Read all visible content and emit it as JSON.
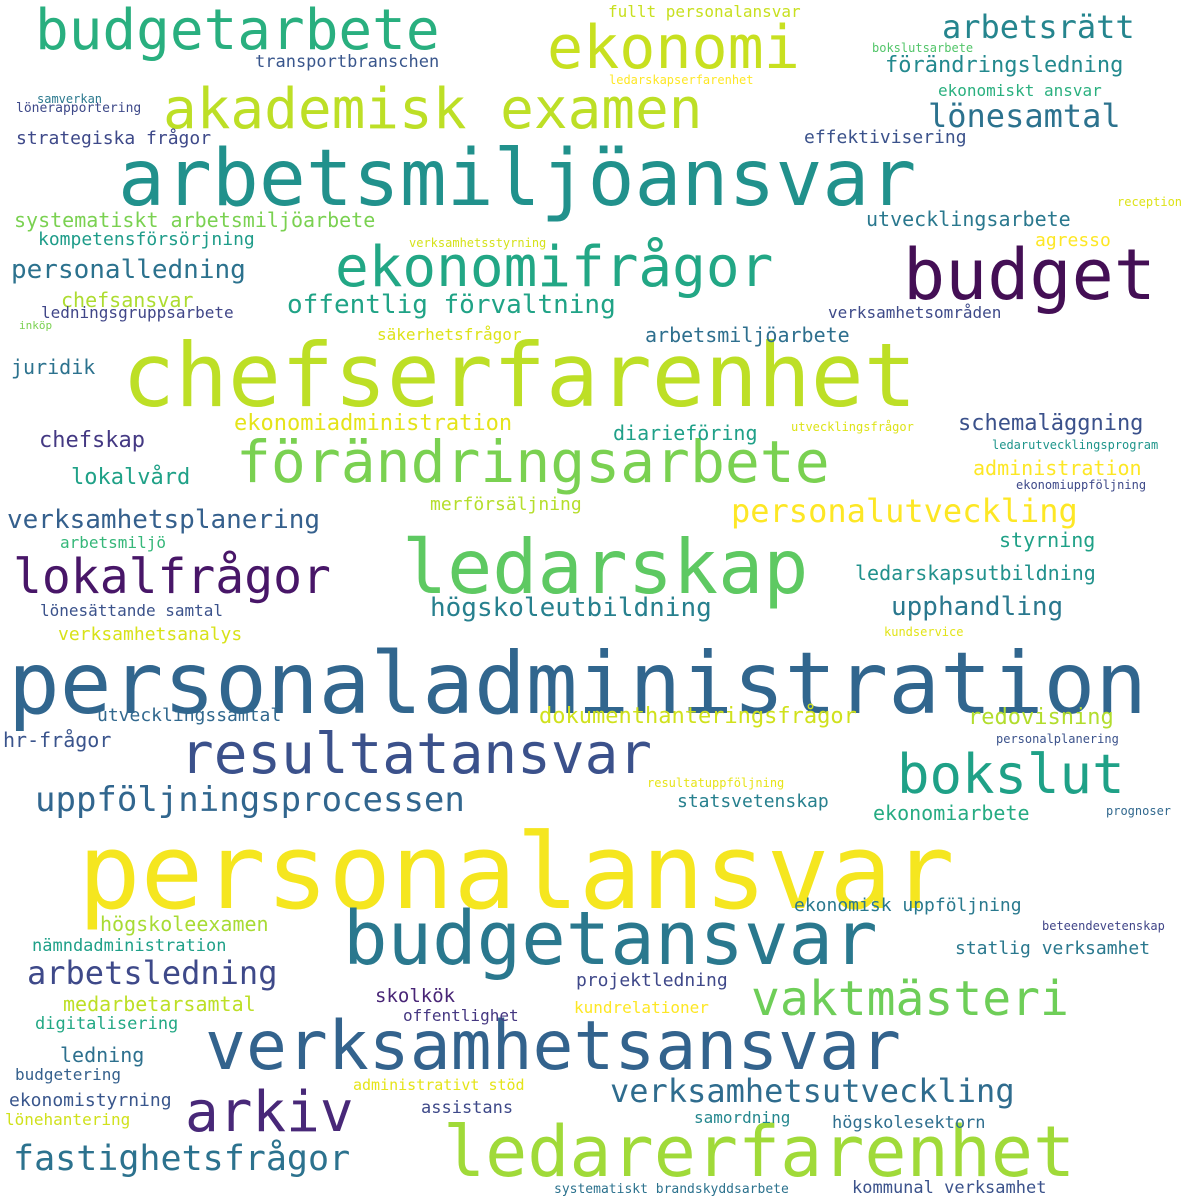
{
  "words": [
    {
      "text": "personalansvar",
      "color": "#f5e61f"
    },
    {
      "text": "personaladministration",
      "color": "#31668e"
    },
    {
      "text": "chefserfarenhet",
      "color": "#bddf26"
    },
    {
      "text": "arbetsmiljöansvar",
      "color": "#21918c"
    },
    {
      "text": "verksamhetsansvar",
      "color": "#33638d"
    },
    {
      "text": "ledarskap",
      "color": "#5ec962"
    },
    {
      "text": "budgetansvar",
      "color": "#2a788e"
    },
    {
      "text": "ledarerfarenhet",
      "color": "#a0da39"
    },
    {
      "text": "budget",
      "color": "#440f55"
    },
    {
      "text": "förändringsarbete",
      "color": "#7ad151"
    },
    {
      "text": "resultatansvar",
      "color": "#3b518b"
    },
    {
      "text": "ekonomi",
      "color": "#c8e020"
    },
    {
      "text": "akademisk examen",
      "color": "#bddf26"
    },
    {
      "text": "ekonomifrågor",
      "color": "#22a785"
    },
    {
      "text": "budgetarbete",
      "color": "#29af7f"
    },
    {
      "text": "lokalfrågor",
      "color": "#481668"
    },
    {
      "text": "bokslut",
      "color": "#1fa187"
    },
    {
      "text": "vaktmästeri",
      "color": "#6ece58"
    },
    {
      "text": "arkiv",
      "color": "#482878"
    },
    {
      "text": "uppföljningsprocessen",
      "color": "#31668e"
    },
    {
      "text": "fastighetsfrågor",
      "color": "#2c728e"
    },
    {
      "text": "verksamhetsutveckling",
      "color": "#2f6c8e"
    },
    {
      "text": "personalutveckling",
      "color": "#fde725"
    },
    {
      "text": "arbetsledning",
      "color": "#3e4989"
    },
    {
      "text": "verksamhetsplanering",
      "color": "#35608d"
    },
    {
      "text": "arbetsrätt",
      "color": "#25858e"
    },
    {
      "text": "lönesamtal",
      "color": "#2c728e"
    },
    {
      "text": "högskoleutbildning",
      "color": "#27808e"
    },
    {
      "text": "offentlig förvaltning",
      "color": "#20a386"
    },
    {
      "text": "personalledning",
      "color": "#2c728e"
    },
    {
      "text": "upphandling",
      "color": "#2a788e"
    },
    {
      "text": "förändringsledning",
      "color": "#23898e"
    },
    {
      "text": "transportbranschen",
      "color": "#39568c"
    },
    {
      "text": "fullt personalansvar",
      "color": "#c8e020"
    },
    {
      "text": "ekonomiskt ansvar",
      "color": "#2ab07f"
    },
    {
      "text": "strategiska frågor",
      "color": "#3e4989"
    },
    {
      "text": "effektivisering",
      "color": "#3b528b"
    },
    {
      "text": "systematiskt arbetsmiljöarbete",
      "color": "#7ad151"
    },
    {
      "text": "kompetensförsörjning",
      "color": "#1e9c89"
    },
    {
      "text": "utvecklingsarbete",
      "color": "#2a788e"
    },
    {
      "text": "chefsansvar",
      "color": "#addc30"
    },
    {
      "text": "agresso",
      "color": "#fde725"
    },
    {
      "text": "ledningsgruppsarbete",
      "color": "#404688"
    },
    {
      "text": "verksamhetsområden",
      "color": "#3e4a89"
    },
    {
      "text": "arbetsmiljöarbete",
      "color": "#2e6f8e"
    },
    {
      "text": "säkerhetsfrågor",
      "color": "#dde318"
    },
    {
      "text": "juridik",
      "color": "#2c728e"
    },
    {
      "text": "ekonomiadministration",
      "color": "#e5e419"
    },
    {
      "text": "schemaläggning",
      "color": "#3b518b"
    },
    {
      "text": "chefskap",
      "color": "#443983"
    },
    {
      "text": "diarieföring",
      "color": "#1fa088"
    },
    {
      "text": "lokalvård",
      "color": "#1fa187"
    },
    {
      "text": "administration",
      "color": "#fde725"
    },
    {
      "text": "merförsäljning",
      "color": "#b5de2b"
    },
    {
      "text": "styrning",
      "color": "#1fa187"
    },
    {
      "text": "arbetsmiljö",
      "color": "#35b779"
    },
    {
      "text": "ledarskapsutbildning",
      "color": "#21918c"
    },
    {
      "text": "lönesättande samtal",
      "color": "#3b528b"
    },
    {
      "text": "verksamhetsanalys",
      "color": "#d8e219"
    },
    {
      "text": "utvecklingssamtal",
      "color": "#31688e"
    },
    {
      "text": "dokumenthanteringsfrågor",
      "color": "#d0e11c"
    },
    {
      "text": "redovisning",
      "color": "#b2dd2d"
    },
    {
      "text": "hr-frågor",
      "color": "#3a548c"
    },
    {
      "text": "statsvetenskap",
      "color": "#27808e"
    },
    {
      "text": "ekonomiarbete",
      "color": "#25ab82"
    },
    {
      "text": "högskoleexamen",
      "color": "#a8db34"
    },
    {
      "text": "ekonomisk uppföljning",
      "color": "#29798e"
    },
    {
      "text": "nämndadministration",
      "color": "#1fa088"
    },
    {
      "text": "statlig verksamhet",
      "color": "#2a788e"
    },
    {
      "text": "skolkök",
      "color": "#482576"
    },
    {
      "text": "projektledning",
      "color": "#3f4889"
    },
    {
      "text": "medarbetarsamtal",
      "color": "#bddf26"
    },
    {
      "text": "kundrelationer",
      "color": "#fde725"
    },
    {
      "text": "digitalisering",
      "color": "#22a884"
    },
    {
      "text": "offentlighet",
      "color": "#453781"
    },
    {
      "text": "ledning",
      "color": "#2d708e"
    },
    {
      "text": "budgetering",
      "color": "#35608d"
    },
    {
      "text": "ekonomistyrning",
      "color": "#39568c"
    },
    {
      "text": "assistans",
      "color": "#3e4989"
    },
    {
      "text": "administrativt stöd",
      "color": "#e5e419"
    },
    {
      "text": "samordning",
      "color": "#24878e"
    },
    {
      "text": "högskolesektorn",
      "color": "#2e6e8e"
    },
    {
      "text": "lönehantering",
      "color": "#d0e11c"
    },
    {
      "text": "systematiskt brandskyddsarbete",
      "color": "#2c728e"
    },
    {
      "text": "kommunal verksamhet",
      "color": "#3b528b"
    },
    {
      "text": "bokslutsarbete",
      "color": "#52c569"
    },
    {
      "text": "ledarskapserfarenhet",
      "color": "#fde725"
    },
    {
      "text": "samverkan",
      "color": "#2a788e"
    },
    {
      "text": "lönerapportering",
      "color": "#3e4989"
    },
    {
      "text": "reception",
      "color": "#dde318"
    },
    {
      "text": "verksamhetsstyrning",
      "color": "#d5e21a"
    },
    {
      "text": "inköp",
      "color": "#7ad151"
    },
    {
      "text": "utvecklingsfrågor",
      "color": "#dde318"
    },
    {
      "text": "ledarutvecklingsprogram",
      "color": "#1f958b"
    },
    {
      "text": "ekonomiuppföljning",
      "color": "#3e4989"
    },
    {
      "text": "kundservice",
      "color": "#e2e418"
    },
    {
      "text": "personalplanering",
      "color": "#3b528b"
    },
    {
      "text": "resultatuppföljning",
      "color": "#e7e419"
    },
    {
      "text": "prognoser",
      "color": "#31688e"
    },
    {
      "text": "beteendevetenskap",
      "color": "#404588"
    }
  ]
}
